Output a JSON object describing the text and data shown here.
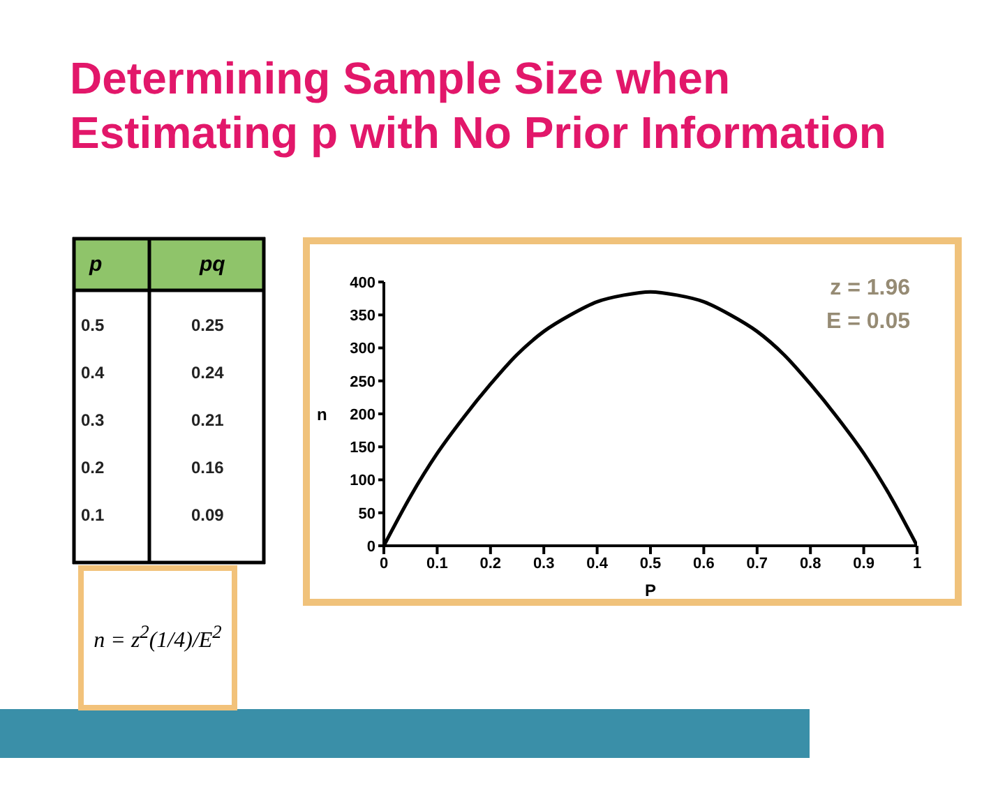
{
  "chart_data": [
    {
      "type": "heatmap",
      "ylabel": "p",
      "categories": [
        "pq"
      ],
      "y_categories": [
        "0.5",
        "0.4",
        "0.3",
        "0.2",
        "0.1"
      ],
      "cells": [
        [
          0.25
        ],
        [
          0.24
        ],
        [
          0.21
        ],
        [
          0.16
        ],
        [
          0.09
        ]
      ],
      "data_labels": true,
      "annotations": [
        "n = z$^{2}$(1/4)/E$^{2}$"
      ]
    },
    {
      "type": "line",
      "title": "Determining Sample Size when Estimating p with No Prior Information",
      "xlabel": "P",
      "ylabel": "n",
      "x": [
        0,
        0.05,
        0.1,
        0.15,
        0.2,
        0.25,
        0.3,
        0.35,
        0.4,
        0.45,
        0.5,
        0.55,
        0.6,
        0.65,
        0.7,
        0.75,
        0.8,
        0.85,
        0.9,
        0.95,
        1
      ],
      "series": [
        {
          "color": "#000000",
          "values": [
            0,
            75,
            140,
            195,
            245,
            290,
            325,
            350,
            370,
            380,
            385,
            380,
            370,
            350,
            325,
            290,
            245,
            195,
            140,
            75,
            0
          ]
        }
      ],
      "xlim": [
        0,
        1
      ],
      "xticks": [
        0,
        0.1,
        0.2,
        0.3,
        0.4,
        0.5,
        0.6,
        0.7,
        0.8,
        0.9,
        1
      ],
      "ylim": [
        0,
        400
      ],
      "yticks": [
        0,
        50,
        100,
        150,
        200,
        250,
        300,
        350,
        400
      ],
      "line_style": "solid",
      "marker": "none",
      "annotations": [
        "z = 1.96",
        "E = 0.05"
      ]
    }
  ]
}
